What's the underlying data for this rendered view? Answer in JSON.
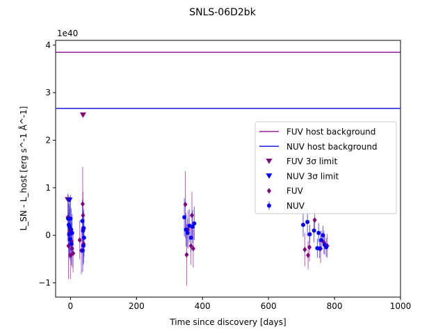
{
  "chart_data": {
    "type": "scatter",
    "title": "SNLS-06D2bk",
    "xlabel": "Time since discovery [days]",
    "ylabel": "L_SN - L_host [erg s^-1 Å^-1]",
    "scale_label": "1e40",
    "xlim": [
      -45,
      1000
    ],
    "ylim": [
      -1.3,
      4.1
    ],
    "x_ticks": [
      0,
      200,
      400,
      600,
      800,
      1000
    ],
    "x_tick_labels": [
      "0",
      "200",
      "400",
      "600",
      "800",
      "1000"
    ],
    "y_ticks": [
      -1,
      0,
      1,
      2,
      3,
      4
    ],
    "y_tick_labels": [
      "−1",
      "0",
      "1",
      "2",
      "3",
      "4"
    ],
    "grid": false,
    "legend_position": "center-right",
    "hlines": [
      {
        "name": "FUV host background",
        "y": 3.85,
        "color": "#9a1a9a"
      },
      {
        "name": "NUV host background",
        "y": 2.67,
        "color": "#1a1ae0"
      }
    ],
    "fuv_limits": {
      "name": "FUV 3σ limit",
      "color": "#800080",
      "x": [
        -8,
        38
      ],
      "y": [
        0.75,
        2.53
      ]
    },
    "nuv_limits": {
      "name": "NUV 3σ limit",
      "color": "#0000ff",
      "x": [
        -3
      ],
      "y": [
        0.74
      ]
    },
    "fuv": {
      "name": "FUV",
      "color": "#800080",
      "points": [
        {
          "x": -8,
          "y": 0.38,
          "err": 0.5
        },
        {
          "x": -6,
          "y": -0.22,
          "err": 0.7
        },
        {
          "x": -4,
          "y": 0.05,
          "err": 0.5
        },
        {
          "x": -2,
          "y": 0.12,
          "err": 0.5
        },
        {
          "x": 0,
          "y": -0.42,
          "err": 0.5
        },
        {
          "x": 3,
          "y": -0.12,
          "err": 0.4
        },
        {
          "x": 5,
          "y": -0.28,
          "err": 0.4
        },
        {
          "x": 8,
          "y": -0.38,
          "err": 0.4
        },
        {
          "x": 28,
          "y": -0.1,
          "err": 0.4
        },
        {
          "x": 33,
          "y": -0.32,
          "err": 0.5
        },
        {
          "x": 37,
          "y": 0.66,
          "err": 0.78
        },
        {
          "x": 38,
          "y": 0.42,
          "err": 0.5
        },
        {
          "x": 40,
          "y": -0.18,
          "err": 0.4
        },
        {
          "x": 348,
          "y": 0.65,
          "err": 0.7
        },
        {
          "x": 352,
          "y": -0.41,
          "err": 0.65
        },
        {
          "x": 356,
          "y": 0.12,
          "err": 0.4
        },
        {
          "x": 365,
          "y": -0.22,
          "err": 0.4
        },
        {
          "x": 368,
          "y": 0.42,
          "err": 0.5
        },
        {
          "x": 372,
          "y": -0.28,
          "err": 0.4
        },
        {
          "x": 710,
          "y": -0.3,
          "err": 0.35
        },
        {
          "x": 720,
          "y": -0.42,
          "err": 0.3
        },
        {
          "x": 724,
          "y": -0.25,
          "err": 0.3
        },
        {
          "x": 740,
          "y": 0.32,
          "err": 0.25
        },
        {
          "x": 758,
          "y": -0.28,
          "err": 0.3
        },
        {
          "x": 768,
          "y": -0.15,
          "err": 0.25
        },
        {
          "x": 778,
          "y": -0.22,
          "err": 0.25
        }
      ]
    },
    "nuv": {
      "name": "NUV",
      "color": "#0000ff",
      "points": [
        {
          "x": -7,
          "y": 0.35,
          "err": 0.5
        },
        {
          "x": -5,
          "y": 0.22,
          "err": 0.45
        },
        {
          "x": -4,
          "y": 0.02,
          "err": 0.5
        },
        {
          "x": -3,
          "y": 0.18,
          "err": 0.5
        },
        {
          "x": -1,
          "y": -0.08,
          "err": 0.45
        },
        {
          "x": 0,
          "y": 0.35,
          "err": 0.5
        },
        {
          "x": 2,
          "y": 0.12,
          "err": 0.45
        },
        {
          "x": 3,
          "y": -0.18,
          "err": 0.45
        },
        {
          "x": 5,
          "y": 0.05,
          "err": 0.4
        },
        {
          "x": 36,
          "y": 0.3,
          "err": 0.45
        },
        {
          "x": 37,
          "y": -0.32,
          "err": 0.45
        },
        {
          "x": 38,
          "y": 0.1,
          "err": 0.4
        },
        {
          "x": 39,
          "y": -0.22,
          "err": 0.4
        },
        {
          "x": 40,
          "y": 0.15,
          "err": 0.4
        },
        {
          "x": 41,
          "y": -0.05,
          "err": 0.4
        },
        {
          "x": 345,
          "y": 0.38,
          "err": 0.4
        },
        {
          "x": 350,
          "y": 0.12,
          "err": 0.35
        },
        {
          "x": 355,
          "y": 0.05,
          "err": 0.3
        },
        {
          "x": 360,
          "y": 0.2,
          "err": 0.35
        },
        {
          "x": 365,
          "y": -0.05,
          "err": 0.3
        },
        {
          "x": 370,
          "y": 0.18,
          "err": 0.35
        },
        {
          "x": 375,
          "y": 0.25,
          "err": 0.35
        },
        {
          "x": 705,
          "y": 0.22,
          "err": 0.25
        },
        {
          "x": 718,
          "y": 0.28,
          "err": 0.3
        },
        {
          "x": 725,
          "y": 0.02,
          "err": 0.2
        },
        {
          "x": 738,
          "y": 0.1,
          "err": 0.25
        },
        {
          "x": 748,
          "y": -0.27,
          "err": 0.2
        },
        {
          "x": 752,
          "y": 0.05,
          "err": 0.2
        },
        {
          "x": 755,
          "y": -0.28,
          "err": 0.2
        },
        {
          "x": 760,
          "y": -0.1,
          "err": 0.2
        },
        {
          "x": 765,
          "y": 0.0,
          "err": 0.2
        },
        {
          "x": 770,
          "y": -0.2,
          "err": 0.2
        },
        {
          "x": 775,
          "y": -0.25,
          "err": 0.2
        }
      ]
    }
  }
}
